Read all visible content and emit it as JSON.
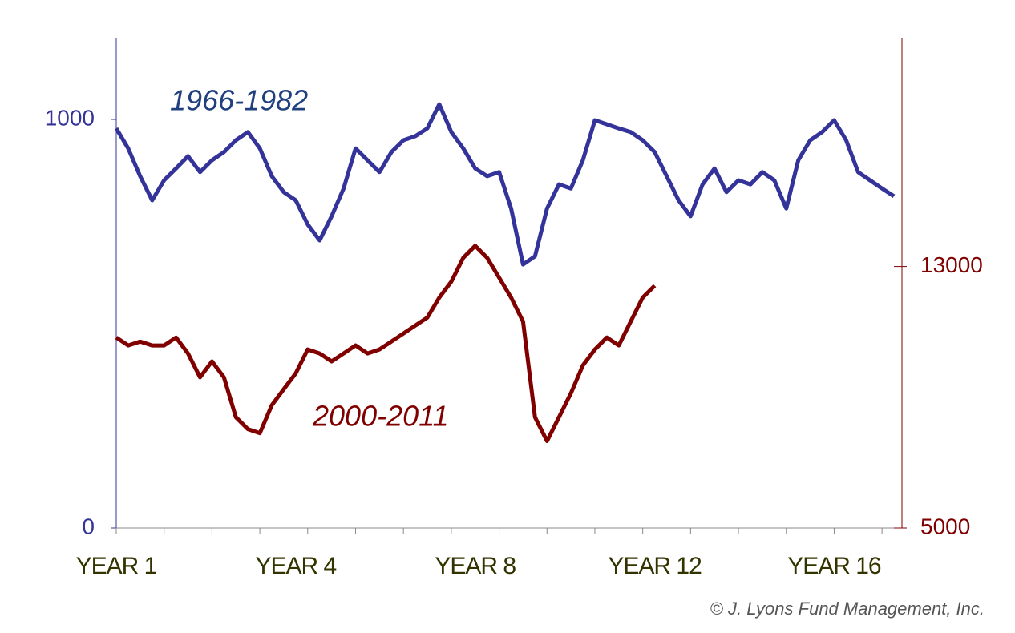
{
  "chart_data": {
    "type": "line",
    "x": [
      0,
      0.25,
      0.5,
      0.75,
      1,
      1.25,
      1.5,
      1.75,
      2,
      2.25,
      2.5,
      2.75,
      3,
      3.25,
      3.5,
      3.75,
      4,
      4.25,
      4.5,
      4.75,
      5,
      5.25,
      5.5,
      5.75,
      6,
      6.25,
      6.5,
      6.75,
      7,
      7.25,
      7.5,
      7.75,
      8,
      8.25,
      8.5,
      8.75,
      9,
      9.25,
      9.5,
      9.75,
      10,
      10.25,
      10.5,
      10.75,
      11,
      11.25,
      11.5,
      11.75,
      12,
      12.25,
      12.5,
      12.75,
      13,
      13.25,
      13.5,
      13.75,
      14,
      14.25,
      14.5,
      14.75,
      15,
      15.25,
      15.5,
      15.75,
      16,
      16.25
    ],
    "series": [
      {
        "name": "1966-1982",
        "color": "#333399",
        "axis": "y",
        "values": [
          978,
          929,
          861,
          802,
          851,
          880,
          910,
          871,
          900,
          920,
          949,
          969,
          929,
          861,
          822,
          802,
          743,
          704,
          763,
          831,
          929,
          900,
          871,
          920,
          949,
          959,
          978,
          1037,
          969,
          929,
          880,
          861,
          871,
          782,
          645,
          665,
          782,
          841,
          831,
          900,
          998,
          988,
          978,
          969,
          949,
          920,
          861,
          802,
          763,
          841,
          880,
          822,
          851,
          841,
          871,
          851,
          782,
          900,
          949,
          969,
          998,
          949,
          871,
          851,
          831,
          812
        ]
      },
      {
        "name": "2000-2011",
        "color": "#800000",
        "axis": "y2",
        "values": [
          10829,
          10585,
          10707,
          10585,
          10585,
          10829,
          10341,
          9610,
          10098,
          9610,
          8390,
          8024,
          7902,
          8756,
          9244,
          9732,
          10463,
          10341,
          10098,
          10341,
          10585,
          10341,
          10463,
          10707,
          10951,
          11195,
          11439,
          12049,
          12537,
          13268,
          13634,
          13268,
          12659,
          12049,
          11317,
          8390,
          7659,
          8390,
          9122,
          9976,
          10463,
          10829,
          10585,
          11317,
          12049,
          12415,
          null,
          null,
          null,
          null,
          null,
          null,
          null,
          null,
          null,
          null,
          null,
          null,
          null,
          null,
          null,
          null,
          null,
          null,
          null,
          null
        ]
      }
    ],
    "xlim": [
      0,
      16.4
    ],
    "xticks": [
      {
        "value": 0,
        "label": "YEAR 1"
      },
      {
        "value": 3.75,
        "label": "YEAR 4"
      },
      {
        "value": 7.5,
        "label": "YEAR 8"
      },
      {
        "value": 11.25,
        "label": "YEAR 12"
      },
      {
        "value": 15,
        "label": "YEAR 16"
      }
    ],
    "xminor": [
      0,
      1,
      2,
      3,
      4,
      5,
      6,
      7,
      8,
      9,
      10,
      11,
      12,
      13,
      14,
      15,
      16
    ],
    "ylim": [
      0,
      1200
    ],
    "yticks": [
      0,
      1000
    ],
    "y2lim": [
      5000,
      20000
    ],
    "y2ticks": [
      5000,
      13000
    ],
    "annotation": "© J. Lyons Fund Management, Inc."
  }
}
